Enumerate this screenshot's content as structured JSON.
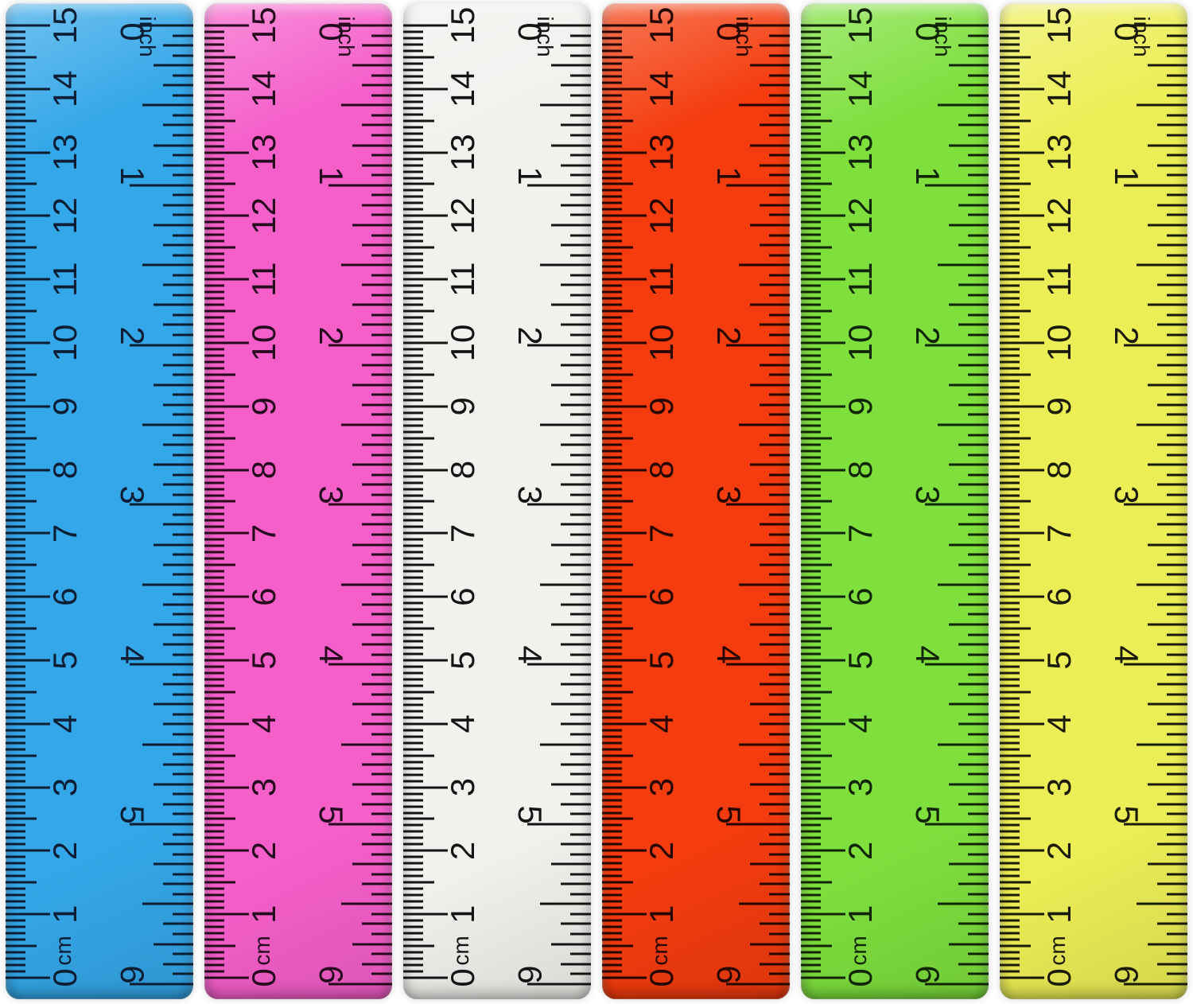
{
  "photo": {
    "background": "#ffffff",
    "description": "Six colorful plastic rulers shown vertically, each 15 cm / 6 inch"
  },
  "scale": {
    "cm_numbers": [
      "0",
      "1",
      "2",
      "3",
      "4",
      "5",
      "6",
      "7",
      "8",
      "9",
      "10",
      "11",
      "12",
      "13",
      "14",
      "15"
    ],
    "cm_unit": "cm",
    "inch_numbers": [
      "0",
      "1",
      "2",
      "3",
      "4",
      "5",
      "6"
    ],
    "inch_unit": "inch",
    "cm_total": 15,
    "inch_total": 6
  },
  "rulers": [
    {
      "name": "blue-ruler",
      "color": "#34a7e8",
      "tick_color": "#0d1d33"
    },
    {
      "name": "pink-ruler",
      "color": "#f55fca",
      "tick_color": "#260a1e"
    },
    {
      "name": "white-ruler",
      "color": "#f2f1ee",
      "tick_color": "#141414"
    },
    {
      "name": "red-ruler",
      "color": "#f43c0e",
      "tick_color": "#260600"
    },
    {
      "name": "green-ruler",
      "color": "#7edf3d",
      "tick_color": "#102505"
    },
    {
      "name": "yellow-ruler",
      "color": "#ecee55",
      "tick_color": "#1a1a08"
    }
  ]
}
